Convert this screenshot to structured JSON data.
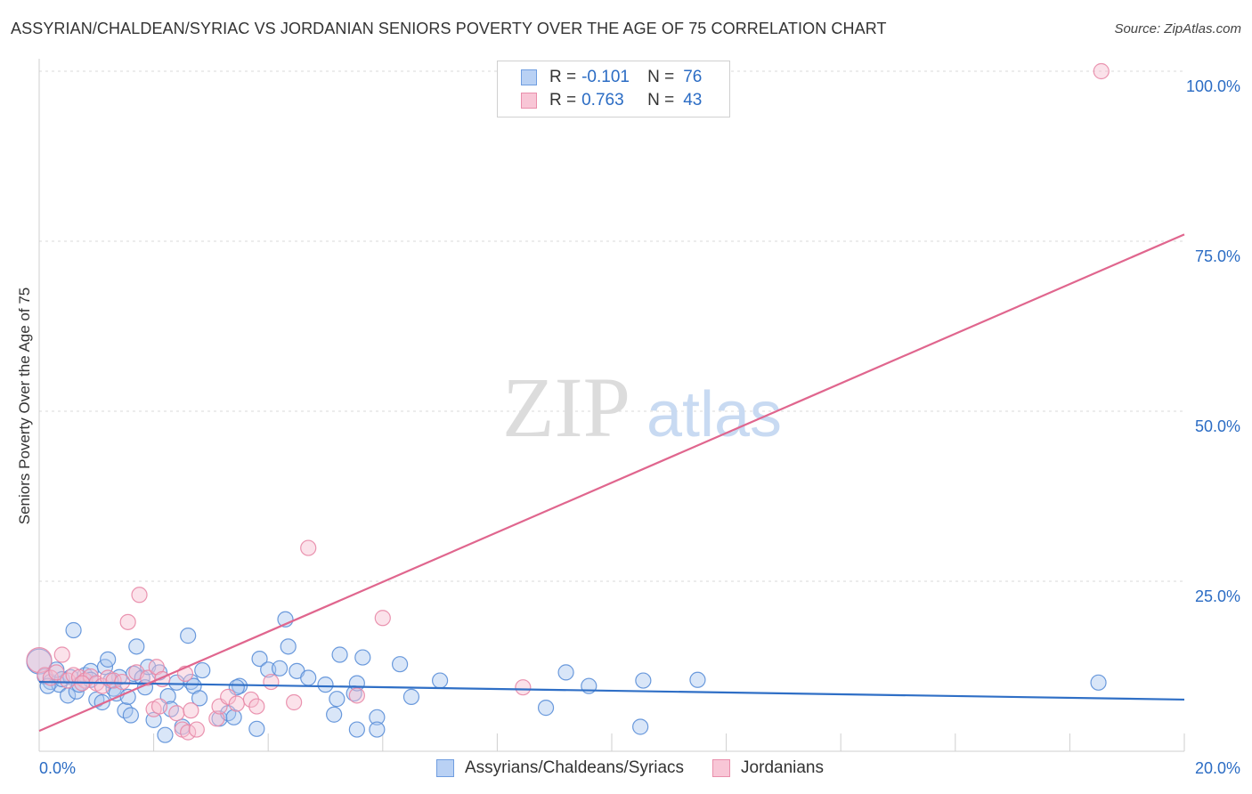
{
  "title": "ASSYRIAN/CHALDEAN/SYRIAC VS JORDANIAN SENIORS POVERTY OVER THE AGE OF 75 CORRELATION CHART",
  "source": "Source: ZipAtlas.com",
  "watermark": {
    "zip": "ZIP",
    "atlas": "atlas"
  },
  "legend_top": {
    "rows": [
      {
        "r_label": "R =",
        "r_value": "-0.101",
        "n_label": "N =",
        "n_value": "76",
        "fill": "#b9d1f4",
        "stroke": "#6f9de0"
      },
      {
        "r_label": "R =",
        "r_value": "0.763",
        "n_label": "N =",
        "n_value": "43",
        "fill": "#f8c6d6",
        "stroke": "#e98eab"
      }
    ]
  },
  "chart_data": {
    "type": "scatter",
    "title": "ASSYRIAN/CHALDEAN/SYRIAC VS JORDANIAN SENIORS POVERTY OVER THE AGE OF 75 CORRELATION CHART",
    "xlabel": "",
    "ylabel": "Seniors Poverty Over the Age of 75",
    "xlim": [
      0,
      20
    ],
    "ylim": [
      0,
      100
    ],
    "x_tick_labels": [
      "0.0%",
      "20.0%"
    ],
    "y_tick_values": [
      25,
      50,
      75,
      100
    ],
    "y_tick_labels": [
      "25.0%",
      "50.0%",
      "75.0%",
      "100.0%"
    ],
    "grid": true,
    "legend_position": "bottom",
    "series": [
      {
        "name": "Assyrians/Chaldeans/Syriacs",
        "color_fill": "#aac8f0",
        "color_stroke": "#5b8fd8",
        "trend_color": "#2f6fc6",
        "trend": {
          "x0": 0,
          "y0": 10.2,
          "x1": 20,
          "y1": 7.6
        },
        "points": [
          [
            0.0,
            13.2
          ],
          [
            0.1,
            11.0
          ],
          [
            0.2,
            10.2
          ],
          [
            0.3,
            12.0
          ],
          [
            0.35,
            9.8
          ],
          [
            0.4,
            10.6
          ],
          [
            0.5,
            8.2
          ],
          [
            0.55,
            10.9
          ],
          [
            0.6,
            17.8
          ],
          [
            0.65,
            8.8
          ],
          [
            0.7,
            9.8
          ],
          [
            0.8,
            11.2
          ],
          [
            0.9,
            11.8
          ],
          [
            1.0,
            7.6
          ],
          [
            1.1,
            7.2
          ],
          [
            1.15,
            12.4
          ],
          [
            1.2,
            13.5
          ],
          [
            1.3,
            9.2
          ],
          [
            1.35,
            8.5
          ],
          [
            1.4,
            10.9
          ],
          [
            1.5,
            6.0
          ],
          [
            1.55,
            8.0
          ],
          [
            1.6,
            5.3
          ],
          [
            1.65,
            11.4
          ],
          [
            1.7,
            15.4
          ],
          [
            1.8,
            10.8
          ],
          [
            1.85,
            9.4
          ],
          [
            1.9,
            12.4
          ],
          [
            2.0,
            4.6
          ],
          [
            2.1,
            11.6
          ],
          [
            2.2,
            2.4
          ],
          [
            2.25,
            8.1
          ],
          [
            2.3,
            6.2
          ],
          [
            2.4,
            10.1
          ],
          [
            2.5,
            3.6
          ],
          [
            2.6,
            17.0
          ],
          [
            2.65,
            10.2
          ],
          [
            2.7,
            9.6
          ],
          [
            2.8,
            7.8
          ],
          [
            2.85,
            11.9
          ],
          [
            3.15,
            4.8
          ],
          [
            3.3,
            5.6
          ],
          [
            3.4,
            5.0
          ],
          [
            3.5,
            9.6
          ],
          [
            3.8,
            3.3
          ],
          [
            3.85,
            13.6
          ],
          [
            4.0,
            12.0
          ],
          [
            4.2,
            12.2
          ],
          [
            4.3,
            19.4
          ],
          [
            4.35,
            15.4
          ],
          [
            4.5,
            11.8
          ],
          [
            4.7,
            10.8
          ],
          [
            5.0,
            9.8
          ],
          [
            5.15,
            5.4
          ],
          [
            5.2,
            7.7
          ],
          [
            5.25,
            14.2
          ],
          [
            5.5,
            8.5
          ],
          [
            5.55,
            10.0
          ],
          [
            5.55,
            3.2
          ],
          [
            5.65,
            13.8
          ],
          [
            5.9,
            5.0
          ],
          [
            5.9,
            3.2
          ],
          [
            6.3,
            12.8
          ],
          [
            6.5,
            8.0
          ],
          [
            7.0,
            10.4
          ],
          [
            8.85,
            6.4
          ],
          [
            9.2,
            11.6
          ],
          [
            9.6,
            9.6
          ],
          [
            10.5,
            3.6
          ],
          [
            10.55,
            10.4
          ],
          [
            11.5,
            10.5
          ],
          [
            18.5,
            10.1
          ],
          [
            0.15,
            9.6
          ],
          [
            0.9,
            10.5
          ],
          [
            1.25,
            10.4
          ],
          [
            3.45,
            9.4
          ]
        ]
      },
      {
        "name": "Jordanians",
        "color_fill": "#f6bfd0",
        "color_stroke": "#e888a7",
        "trend_color": "#e0668e",
        "trend": {
          "x0": 0,
          "y0": 3.0,
          "x1": 20,
          "y1": 76.0
        },
        "points": [
          [
            0.0,
            13.4
          ],
          [
            0.1,
            11.2
          ],
          [
            0.2,
            10.8
          ],
          [
            0.3,
            11.6
          ],
          [
            0.4,
            14.2
          ],
          [
            0.5,
            10.4
          ],
          [
            0.6,
            11.2
          ],
          [
            0.7,
            10.9
          ],
          [
            0.8,
            10.4
          ],
          [
            0.9,
            11.0
          ],
          [
            1.0,
            10.0
          ],
          [
            1.1,
            9.6
          ],
          [
            1.2,
            10.8
          ],
          [
            1.3,
            10.4
          ],
          [
            1.55,
            19.0
          ],
          [
            1.7,
            11.6
          ],
          [
            1.75,
            23.0
          ],
          [
            1.9,
            10.8
          ],
          [
            2.0,
            6.2
          ],
          [
            2.05,
            12.4
          ],
          [
            2.1,
            6.6
          ],
          [
            2.15,
            10.6
          ],
          [
            2.4,
            5.6
          ],
          [
            2.5,
            3.2
          ],
          [
            2.55,
            11.4
          ],
          [
            2.6,
            2.8
          ],
          [
            2.65,
            6.0
          ],
          [
            2.75,
            3.2
          ],
          [
            3.1,
            4.8
          ],
          [
            3.15,
            6.6
          ],
          [
            3.3,
            8.0
          ],
          [
            3.45,
            7.0
          ],
          [
            3.7,
            7.6
          ],
          [
            3.8,
            6.6
          ],
          [
            4.05,
            10.2
          ],
          [
            4.45,
            7.2
          ],
          [
            4.7,
            29.9
          ],
          [
            5.55,
            8.2
          ],
          [
            6.0,
            19.6
          ],
          [
            8.45,
            9.4
          ],
          [
            18.55,
            100.0
          ],
          [
            1.45,
            10.2
          ],
          [
            0.75,
            10.0
          ]
        ]
      }
    ]
  },
  "legend_bottom": [
    {
      "label": "Assyrians/Chaldeans/Syriacs",
      "fill": "#b9d1f4",
      "stroke": "#6f9de0"
    },
    {
      "label": "Jordanians",
      "fill": "#f8c6d6",
      "stroke": "#e98eab"
    }
  ]
}
